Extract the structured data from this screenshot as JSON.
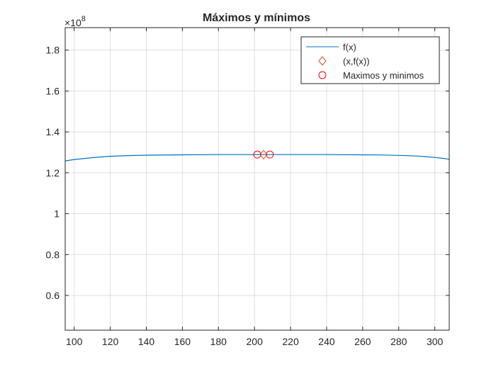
{
  "chart_data": {
    "type": "line",
    "title": "Máximos y mínimos",
    "xlabel": "",
    "ylabel": "",
    "y_exponent_label": "×10",
    "y_exponent_power": "8",
    "xlim": [
      95,
      308
    ],
    "ylim": [
      0.43,
      1.91
    ],
    "y_scale_factor": 100000000,
    "grid": true,
    "legend_placement": "top-right",
    "x_ticks": [
      100,
      120,
      140,
      160,
      180,
      200,
      220,
      240,
      260,
      280,
      300
    ],
    "y_ticks": [
      0.6,
      0.8,
      1,
      1.2,
      1.4,
      1.6,
      1.8
    ],
    "x_tick_labels": [
      "100",
      "120",
      "140",
      "160",
      "180",
      "200",
      "220",
      "240",
      "260",
      "280",
      "300"
    ],
    "y_tick_labels": [
      "0.6",
      "0.8",
      "1",
      "1.2",
      "1.4",
      "1.6",
      "1.8"
    ],
    "series": [
      {
        "name": "f(x)",
        "style": "line",
        "color": "#0072BD",
        "x": [
          95,
          100,
          110,
          120,
          130,
          140,
          160,
          180,
          200,
          220,
          240,
          260,
          270,
          280,
          290,
          295,
          300,
          305,
          308
        ],
        "y": [
          1.258,
          1.265,
          1.274,
          1.281,
          1.284,
          1.286,
          1.288,
          1.289,
          1.289,
          1.289,
          1.289,
          1.288,
          1.287,
          1.285,
          1.282,
          1.279,
          1.275,
          1.27,
          1.266
        ]
      },
      {
        "name": "(x,f(x))",
        "style": "diamond",
        "color": "#D95319",
        "x": [
          205
        ],
        "y": [
          1.289
        ]
      },
      {
        "name": "Maximos y minimos",
        "style": "circle",
        "color": "#FF0000",
        "x": [
          201.5,
          208.5
        ],
        "y": [
          1.289,
          1.289
        ]
      }
    ]
  }
}
